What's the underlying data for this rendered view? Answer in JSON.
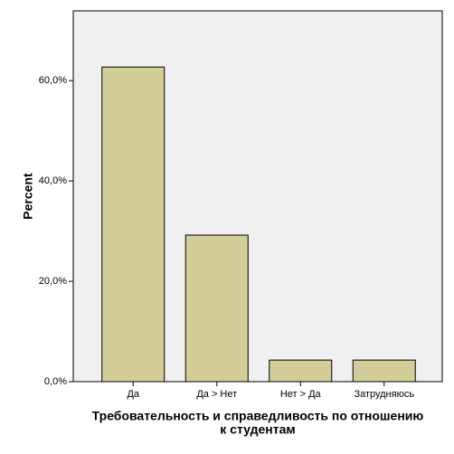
{
  "chart_data": {
    "type": "bar",
    "categories": [
      "Да",
      "Да > Нет",
      "Нет > Да",
      "Затрудняюсь"
    ],
    "values": [
      62.7,
      29.2,
      4.3,
      4.3
    ],
    "color": "#d3ce97",
    "y_label": "Percent",
    "x_label": [
      "Требовательность и справедливость по отношению",
      "к студентам"
    ],
    "ylim": [
      0,
      73.9
    ],
    "yticks": [
      {
        "value": 0,
        "label": "0,0%"
      },
      {
        "value": 20,
        "label": "20,0%"
      },
      {
        "value": 40,
        "label": "40,0%"
      },
      {
        "value": 60,
        "label": "60,0%"
      }
    ]
  }
}
